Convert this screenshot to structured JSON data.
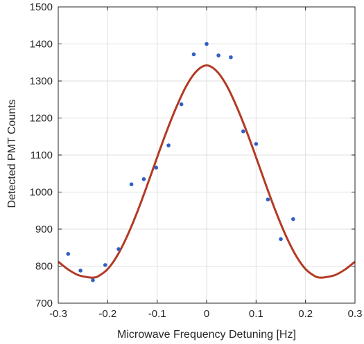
{
  "chart_data": {
    "type": "scatter",
    "title": "",
    "xlabel": "Microwave Frequency Detuning [Hz]",
    "ylabel": "Detected PMT Counts",
    "xlim": [
      -0.3,
      0.3
    ],
    "ylim": [
      700,
      1500
    ],
    "x_ticks": [
      "-0.3",
      "-0.2",
      "-0.1",
      "0",
      "0.1",
      "0.2",
      "0.3"
    ],
    "y_ticks": [
      "700",
      "800",
      "900",
      "1000",
      "1100",
      "1200",
      "1300",
      "1400",
      "1500"
    ],
    "grid": true,
    "legend": "none",
    "series": [
      {
        "kind": "scatter",
        "color": "#2f5fc4",
        "points": [
          [
            -0.28,
            833
          ],
          [
            -0.255,
            788
          ],
          [
            -0.23,
            762
          ],
          [
            -0.205,
            803
          ],
          [
            -0.178,
            846
          ],
          [
            -0.152,
            1021
          ],
          [
            -0.127,
            1035
          ],
          [
            -0.102,
            1066
          ],
          [
            -0.077,
            1126
          ],
          [
            -0.051,
            1237
          ],
          [
            -0.026,
            1372
          ],
          [
            0.0,
            1400
          ],
          [
            0.024,
            1369
          ],
          [
            0.049,
            1364
          ],
          [
            0.074,
            1164
          ],
          [
            0.1,
            1130
          ],
          [
            0.124,
            980
          ],
          [
            0.15,
            873
          ],
          [
            0.175,
            927
          ]
        ]
      },
      {
        "kind": "line",
        "color": "#b33a24",
        "x": [
          -0.3,
          -0.28,
          -0.26,
          -0.24,
          -0.23,
          -0.22,
          -0.2,
          -0.18,
          -0.16,
          -0.14,
          -0.12,
          -0.1,
          -0.08,
          -0.06,
          -0.04,
          -0.02,
          0.0,
          0.02,
          0.04,
          0.06,
          0.08,
          0.1,
          0.12,
          0.14,
          0.16,
          0.18,
          0.2,
          0.22,
          0.23,
          0.24,
          0.26,
          0.28,
          0.3
        ],
        "y": [
          812,
          791,
          776,
          770,
          769,
          772,
          792,
          830,
          883,
          947,
          1019,
          1094,
          1167,
          1233,
          1289,
          1327,
          1342,
          1327,
          1289,
          1233,
          1167,
          1094,
          1019,
          947,
          883,
          830,
          792,
          772,
          769,
          770,
          776,
          791,
          812
        ]
      }
    ]
  }
}
